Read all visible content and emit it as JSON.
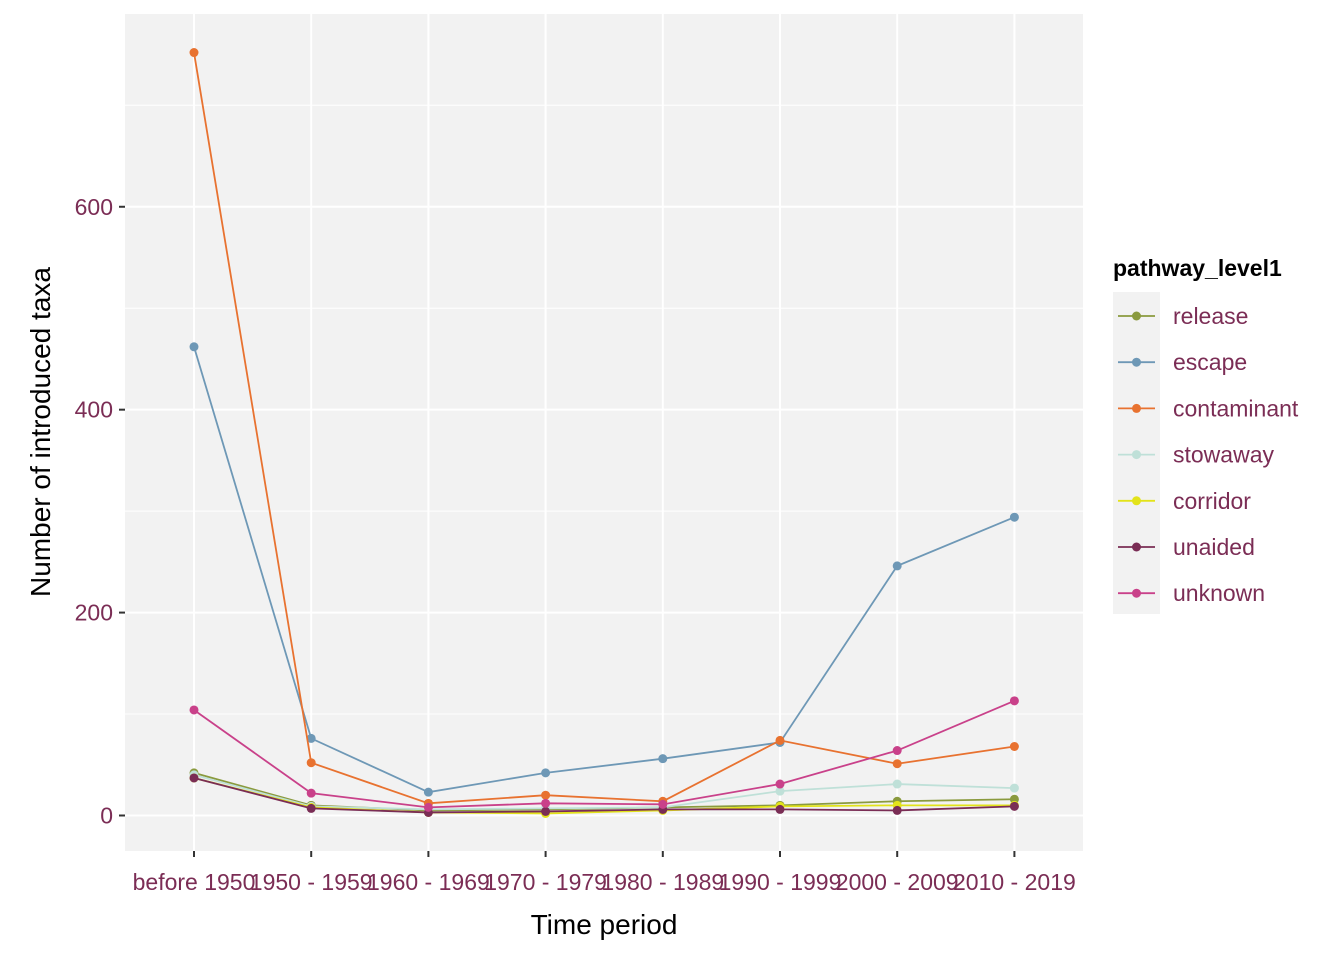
{
  "chart_data": {
    "type": "line",
    "xlabel": "Time period",
    "ylabel": "Number of introduced taxa",
    "categories": [
      "before 1950",
      "1950 - 1959",
      "1960 - 1969",
      "1970 - 1979",
      "1980 - 1989",
      "1990 - 1999",
      "2000 - 2009",
      "2010 - 2019"
    ],
    "yticks": [
      0,
      200,
      400,
      600
    ],
    "ylim": [
      -35,
      790
    ],
    "grid": true,
    "legend": {
      "title": "pathway_level1",
      "position": "right"
    },
    "series": [
      {
        "name": "release",
        "color": "#8a9a3e",
        "values": [
          42,
          10,
          5,
          6,
          8,
          10,
          14,
          16
        ]
      },
      {
        "name": "escape",
        "color": "#6e98b6",
        "values": [
          462,
          76,
          23,
          42,
          56,
          72,
          246,
          294
        ]
      },
      {
        "name": "contaminant",
        "color": "#e87230",
        "values": [
          752,
          52,
          12,
          20,
          14,
          74,
          51,
          68
        ]
      },
      {
        "name": "stowaway",
        "color": "#bfe0d8",
        "values": [
          40,
          9,
          6,
          7,
          8,
          24,
          31,
          27
        ]
      },
      {
        "name": "corridor",
        "color": "#e3e31a",
        "values": [
          37,
          8,
          3,
          2,
          5,
          9,
          10,
          10
        ]
      },
      {
        "name": "unaided",
        "color": "#7a2d55",
        "values": [
          37,
          7,
          3,
          4,
          6,
          6,
          5,
          9
        ]
      },
      {
        "name": "unknown",
        "color": "#c9418a",
        "values": [
          104,
          22,
          8,
          12,
          11,
          31,
          64,
          113
        ]
      }
    ]
  },
  "style": {
    "panel_background": "#f2f2f2",
    "grid_color": "#ffffff",
    "tick_label_color": "#7b2d55"
  }
}
